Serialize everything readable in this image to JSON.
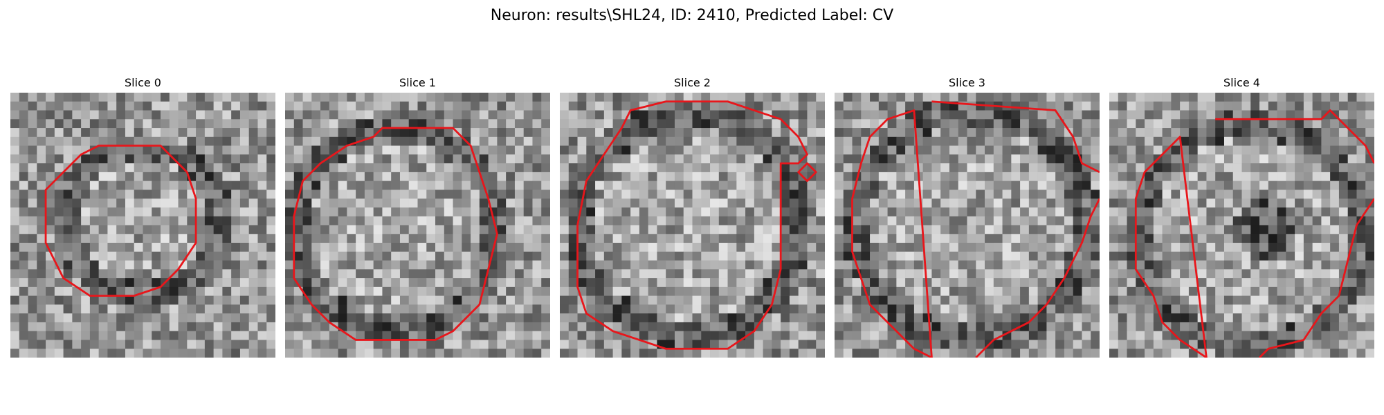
{
  "figure": {
    "title": "Neuron: results\\SHL24, ID: 2410, Predicted Label: CV"
  },
  "overlay_color": "#e8161b",
  "slices": [
    {
      "title": "Slice 0"
    },
    {
      "title": "Slice 1"
    },
    {
      "title": "Slice 2"
    },
    {
      "title": "Slice 3"
    },
    {
      "title": "Slice 4"
    }
  ]
}
